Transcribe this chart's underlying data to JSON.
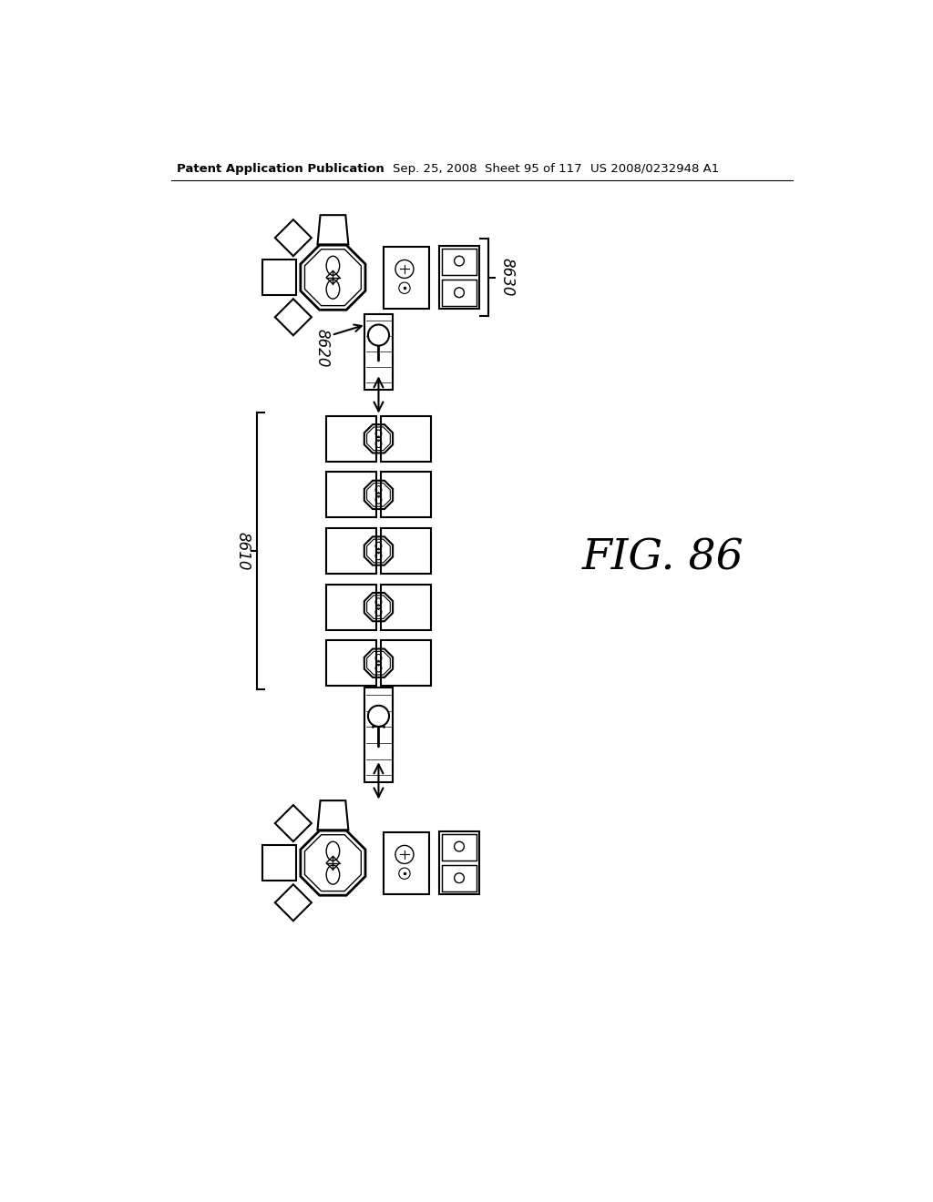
{
  "header_left": "Patent Application Publication",
  "header_mid": "Sep. 25, 2008  Sheet 95 of 117",
  "header_right": "US 2008/0232948 A1",
  "fig_label": "FIG. 86",
  "label_8630": "8630",
  "label_8620": "8620",
  "label_8610": "8610",
  "bg_color": "#ffffff",
  "line_color": "#000000"
}
